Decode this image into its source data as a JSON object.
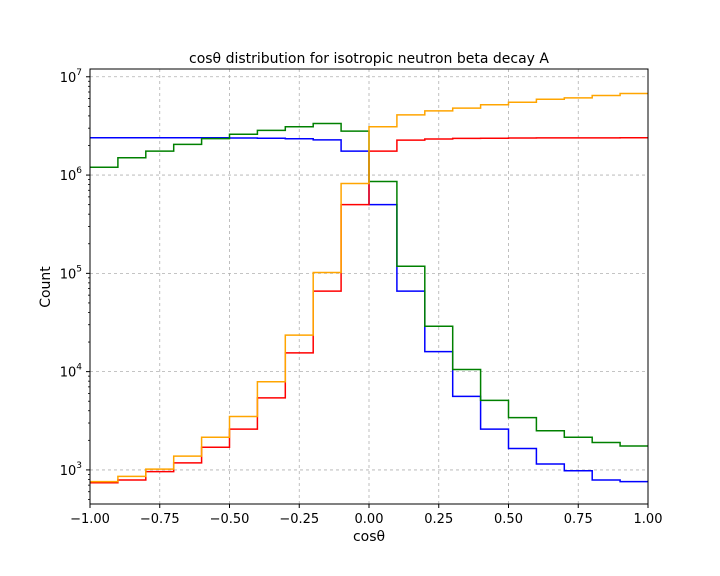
{
  "chart_data": {
    "type": "histogram-step",
    "title": "cosθ distribution for isotropic neutron beta decay A",
    "xlabel": "cosθ",
    "ylabel": "Count",
    "xlim": [
      -1.0,
      1.0
    ],
    "ylim": [
      450,
      12000000
    ],
    "yscale": "log",
    "grid": true,
    "bin_edges": [
      -1.0,
      -0.9,
      -0.8,
      -0.7,
      -0.6,
      -0.5,
      -0.4,
      -0.3,
      -0.2,
      -0.1,
      0.0,
      0.1,
      0.2,
      0.3,
      0.4,
      0.5,
      0.6,
      0.7,
      0.8,
      0.9,
      1.0
    ],
    "x_ticks": [
      {
        "value": -1.0,
        "label": "−1.00"
      },
      {
        "value": -0.75,
        "label": "−0.75"
      },
      {
        "value": -0.5,
        "label": "−0.50"
      },
      {
        "value": -0.25,
        "label": "−0.25"
      },
      {
        "value": 0.0,
        "label": "0.00"
      },
      {
        "value": 0.25,
        "label": "0.25"
      },
      {
        "value": 0.5,
        "label": "0.50"
      },
      {
        "value": 0.75,
        "label": "0.75"
      },
      {
        "value": 1.0,
        "label": "1.00"
      }
    ],
    "y_ticks": [
      {
        "value": 1000,
        "base": "10",
        "exp": "3"
      },
      {
        "value": 10000,
        "base": "10",
        "exp": "4"
      },
      {
        "value": 100000,
        "base": "10",
        "exp": "5"
      },
      {
        "value": 1000000,
        "base": "10",
        "exp": "6"
      },
      {
        "value": 10000000,
        "base": "10",
        "exp": "7"
      }
    ],
    "series": [
      {
        "color": "#0000ff",
        "values": [
          2400000,
          2400000,
          2400000,
          2400000,
          2400000,
          2380000,
          2370000,
          2340000,
          2280000,
          1750000,
          500000,
          66000,
          16000,
          5600,
          2600,
          1650,
          1150,
          980,
          790,
          760
        ]
      },
      {
        "color": "#ff0000",
        "values": [
          740,
          790,
          960,
          1180,
          1700,
          2600,
          5400,
          15500,
          66000,
          500000,
          1750000,
          2270000,
          2330000,
          2360000,
          2370000,
          2380000,
          2390000,
          2390000,
          2390000,
          2400000
        ]
      },
      {
        "color": "#008000",
        "values": [
          1200000,
          1500000,
          1750000,
          2050000,
          2350000,
          2600000,
          2850000,
          3100000,
          3350000,
          2800000,
          860000,
          118000,
          29000,
          10500,
          5100,
          3400,
          2500,
          2150,
          1900,
          1750
        ]
      },
      {
        "color": "#ffa500",
        "values": [
          760,
          860,
          1020,
          1380,
          2150,
          3500,
          7900,
          23500,
          102000,
          820000,
          3100000,
          4100000,
          4500000,
          4800000,
          5200000,
          5500000,
          5900000,
          6100000,
          6450000,
          6750000
        ]
      }
    ]
  }
}
